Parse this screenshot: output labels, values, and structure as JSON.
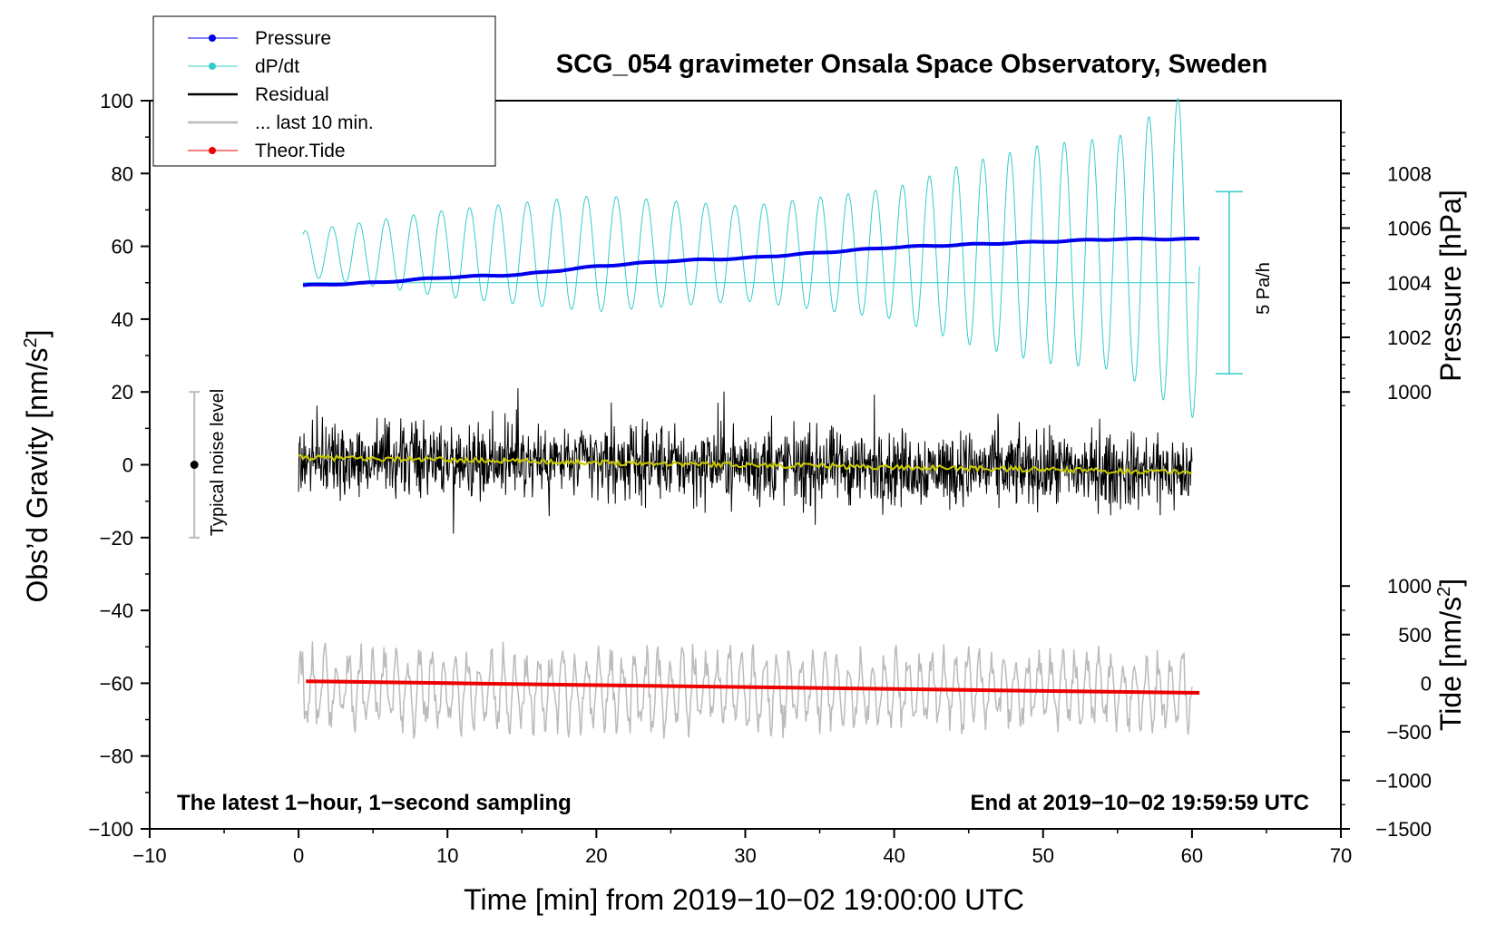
{
  "chart_data": {
    "type": "line",
    "title": "SCG_054 gravimeter Onsala Space Observatory, Sweden",
    "xlabel": "Time [min] from 2019−10−02 19:00:00 UTC",
    "ylabel": "Obs’d Gravity [nm/s",
    "ylabel_sup": "2",
    "ylabel_end": "]",
    "pressure_label": "Pressure [hPa]",
    "tide_label": "Tide [nm/s",
    "tide_label_sup": "2",
    "tide_label_end": "]",
    "xlim": [
      -10,
      70
    ],
    "ylim": [
      -100,
      100
    ],
    "x_ticks": [
      "−10",
      "0",
      "10",
      "20",
      "30",
      "40",
      "50",
      "60",
      "70"
    ],
    "x_tick_values": [
      -10,
      0,
      10,
      20,
      30,
      40,
      50,
      60,
      70
    ],
    "y_ticks": [
      "100",
      "80",
      "60",
      "40",
      "20",
      "0",
      "−20",
      "−40",
      "−60",
      "−80",
      "−100"
    ],
    "y_tick_values": [
      100,
      80,
      60,
      40,
      20,
      0,
      -20,
      -40,
      -60,
      -80,
      -100
    ],
    "pressure_ticks": [
      "1008",
      "1006",
      "1004",
      "1002",
      "1000"
    ],
    "pressure_tick_values": [
      1008,
      1006,
      1004,
      1002,
      1000
    ],
    "pressure_axis_range_gravity_units": [
      1000,
      1008,
      20,
      80
    ],
    "tide_ticks": [
      "1000",
      "500",
      "0",
      "−500",
      "−1000",
      "−1500"
    ],
    "tide_tick_values": [
      1000,
      500,
      0,
      -500,
      -1000,
      -1500
    ],
    "tide_axis_range_gravity_units": [
      -1500,
      1000,
      -100,
      -33.3
    ],
    "legend": [
      {
        "label": "Pressure",
        "color": "#0000ee",
        "marker": true
      },
      {
        "label": "dP/dt",
        "color": "#33cccc",
        "marker": true
      },
      {
        "label": "Residual",
        "color": "#000000",
        "marker": false
      },
      {
        "label": "... last 10 min.",
        "color": "#bbbbbb",
        "marker": false
      },
      {
        "label": "Theor.Tide",
        "color": "#ee0000",
        "marker": true
      }
    ],
    "annotations": {
      "noise_label": "Typical noise level",
      "noise_range": [
        -20,
        20
      ],
      "noise_x": -7,
      "rate_label": "5 Pa/h",
      "rate_range": [
        25,
        75
      ],
      "rate_x": 62.5,
      "bottom_left": "The latest 1−hour, 1−second sampling",
      "bottom_right": "End at 2019−10−02 19:59:59 UTC"
    },
    "series": [
      {
        "name": "Pressure",
        "unit": "hPa",
        "color": "#0000ee",
        "x": [
          0.3,
          5,
          10,
          15,
          20,
          25,
          30,
          35,
          40,
          45,
          50,
          55,
          60,
          60.5
        ],
        "values": [
          1003.9,
          1004.0,
          1004.2,
          1004.3,
          1004.6,
          1004.8,
          1004.9,
          1005.1,
          1005.3,
          1005.4,
          1005.5,
          1005.6,
          1005.6,
          1005.6
        ]
      },
      {
        "name": "dP/dt",
        "unit": "gravity-axis units",
        "color": "#33cccc",
        "baseline": 50,
        "x_range": [
          0.3,
          60.5
        ],
        "amplitude_at_x": {
          "x": [
            0,
            10,
            20,
            30,
            40,
            45,
            50,
            55,
            58,
            60
          ],
          "values": [
            6,
            12,
            16,
            13,
            18,
            25,
            30,
            32,
            40,
            45
          ]
        },
        "period_min": 1.9
      },
      {
        "name": "Residual",
        "unit": "nm/s2",
        "color": "#000000",
        "x_range": [
          0.0,
          60.0
        ],
        "trend": [
          2,
          -2
        ],
        "noise_peak": 20
      },
      {
        "name": "Residual smoothed",
        "unit": "nm/s2",
        "color": "#cccc00",
        "x": [
          0,
          60
        ],
        "values": [
          2.0,
          -2.0
        ]
      },
      {
        "name": "... last 10 min.",
        "unit": "nm/s2",
        "color": "#bbbbbb",
        "x_range": [
          0.0,
          60.0
        ],
        "center": -62,
        "amplitude": 8,
        "period_min": 0.8
      },
      {
        "name": "Theor.Tide",
        "unit": "nm/s2",
        "color": "#ee0000",
        "x": [
          0.5,
          10,
          20,
          30,
          40,
          50,
          60.5
        ],
        "values": [
          20,
          0,
          -20,
          -40,
          -60,
          -80,
          -100
        ]
      }
    ]
  }
}
